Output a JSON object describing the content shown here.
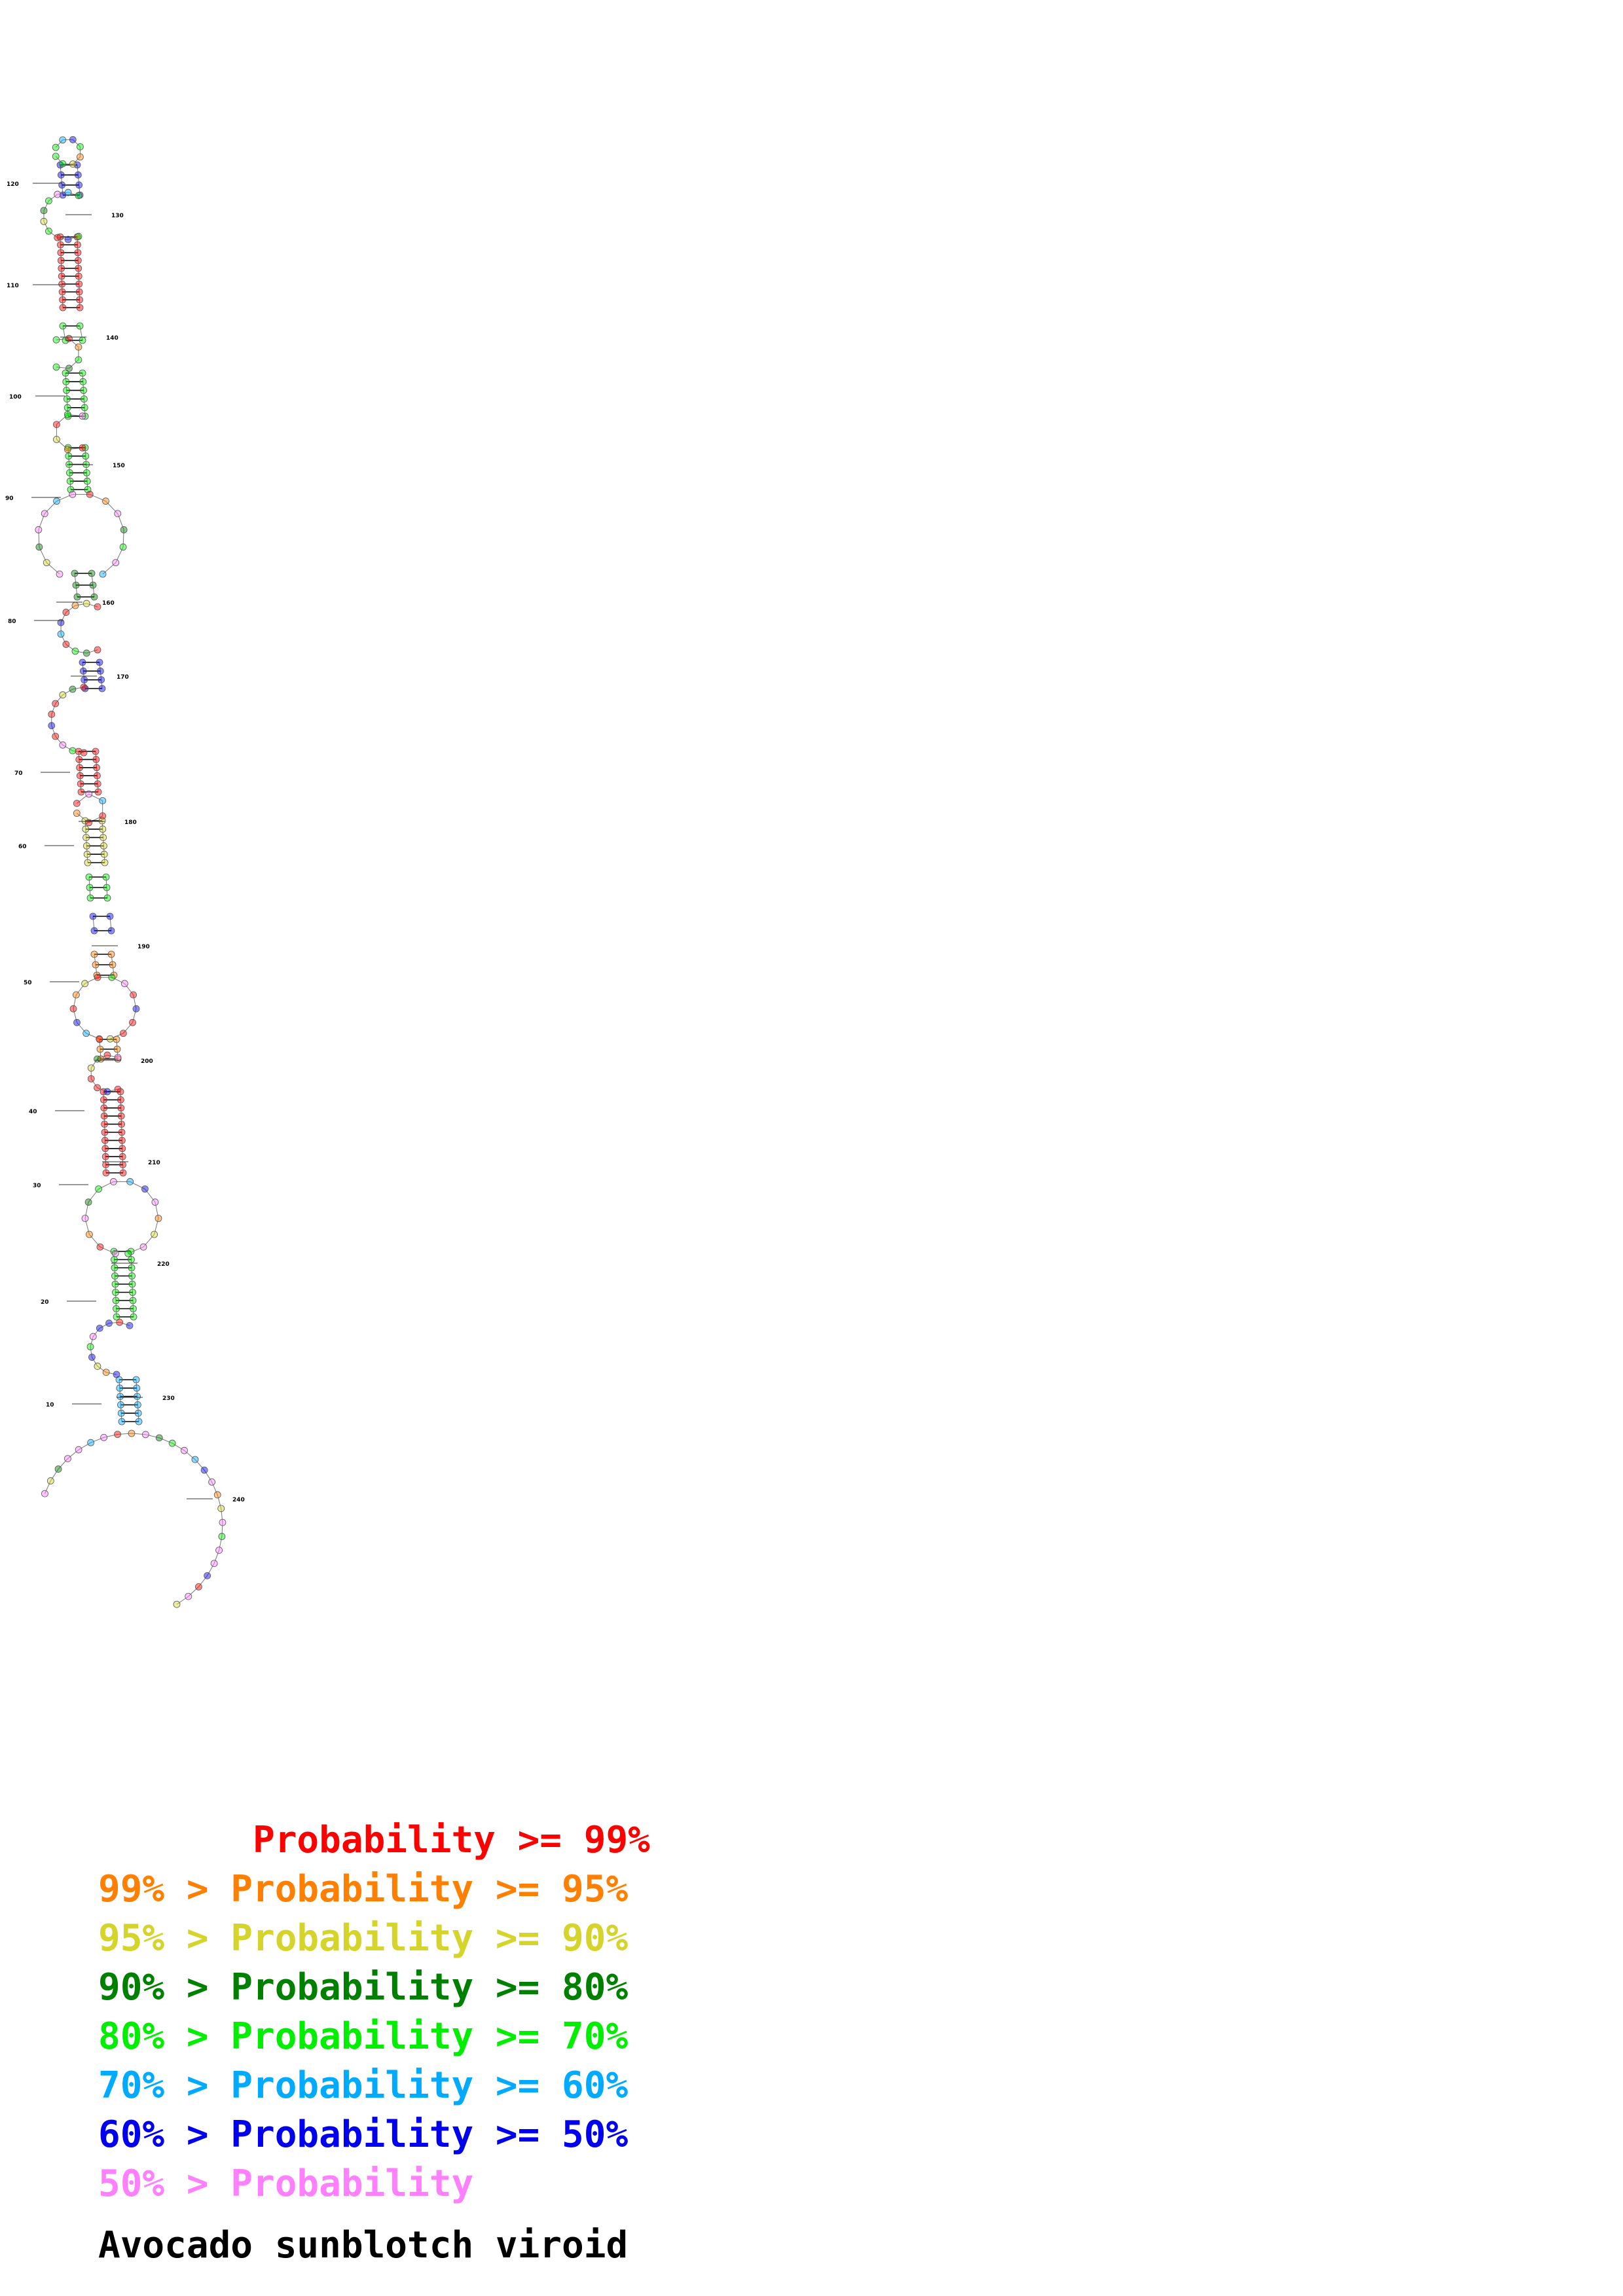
{
  "title": "Avocado sunblotch viroid",
  "legend": [
    {
      "text": "       Probability >= 99%",
      "color": "#ff0000"
    },
    {
      "text": "99% > Probability >= 95%",
      "color": "#ff8000"
    },
    {
      "text": "95% > Probability >= 90%",
      "color": "#d4d42a"
    },
    {
      "text": "90% > Probability >= 80%",
      "color": "#008000"
    },
    {
      "text": "80% > Probability >= 70%",
      "color": "#00ee00"
    },
    {
      "text": "70% > Probability >= 60%",
      "color": "#00aaff"
    },
    {
      "text": "60% > Probability >= 50%",
      "color": "#0000ee"
    },
    {
      "text": "50% > Probability",
      "color": "#ff80ff"
    }
  ],
  "tick_labels": [
    "10",
    "20",
    "30",
    "40",
    "50",
    "60",
    "70",
    "80",
    "90",
    "100",
    "110",
    "120",
    "130",
    "140",
    "150",
    "160",
    "170",
    "180",
    "190",
    "200",
    "210",
    "220",
    "230",
    "240"
  ]
}
